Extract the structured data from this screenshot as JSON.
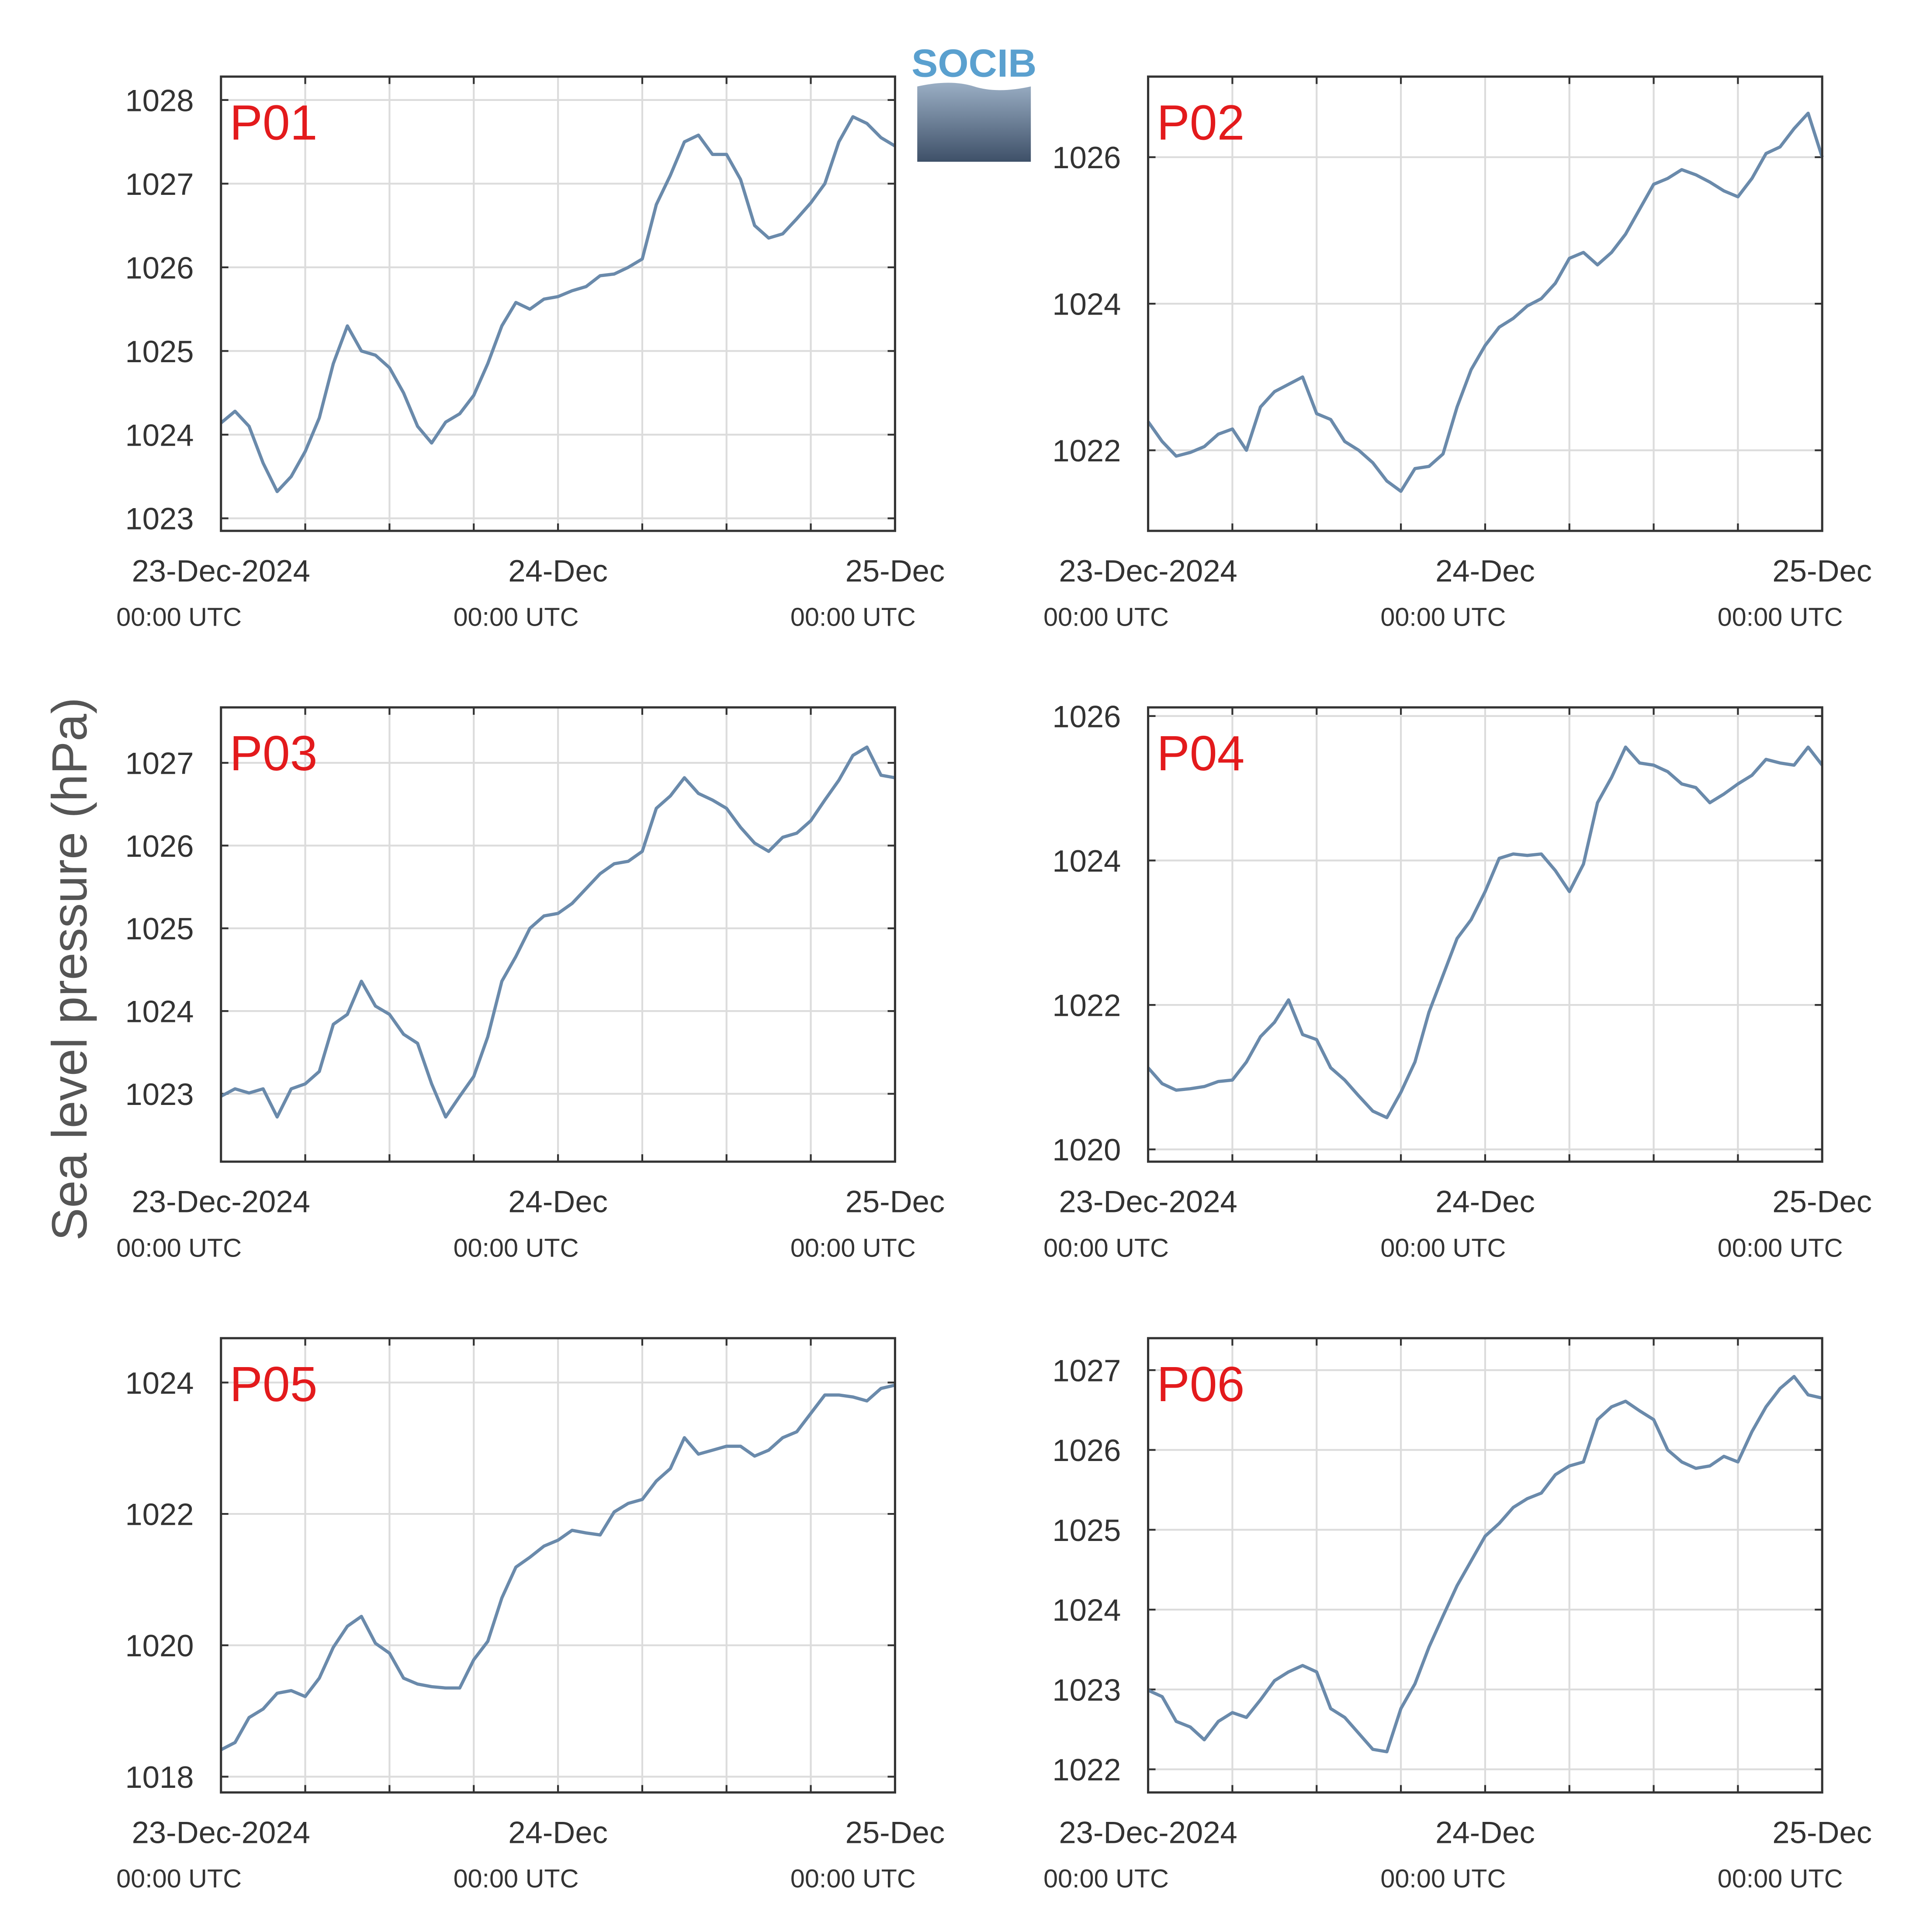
{
  "ylabel": "Sea level pressure (hPa)",
  "logo_text": "SOCIB",
  "chart_data": [
    {
      "type": "line",
      "title": "P01",
      "title_color": "#e31a1c",
      "color": "#6a8aab",
      "grid": true,
      "x": [
        0,
        1,
        2,
        3,
        4,
        5,
        6,
        7,
        8,
        9,
        10,
        11,
        12,
        13,
        14,
        15,
        16,
        17,
        18,
        19,
        20,
        21,
        22,
        23,
        24,
        25,
        26,
        27,
        28,
        29,
        30,
        31,
        32,
        33,
        34,
        35,
        36,
        37,
        38,
        39,
        40,
        41,
        42,
        43,
        44,
        45,
        46,
        47,
        48
      ],
      "values": [
        1024.14,
        1024.28,
        1024.1,
        1023.66,
        1023.32,
        1023.5,
        1023.8,
        1024.2,
        1024.85,
        1025.3,
        1025.0,
        1024.95,
        1024.8,
        1024.5,
        1024.1,
        1023.9,
        1024.15,
        1024.25,
        1024.47,
        1024.85,
        1025.3,
        1025.58,
        1025.5,
        1025.62,
        1025.65,
        1025.72,
        1025.77,
        1025.9,
        1025.92,
        1026.0,
        1026.1,
        1026.75,
        1027.1,
        1027.5,
        1027.58,
        1027.35,
        1027.35,
        1027.05,
        1026.5,
        1026.35,
        1026.4,
        1026.58,
        1026.77,
        1027.0,
        1027.5,
        1027.8,
        1027.72,
        1027.55,
        1027.45
      ],
      "xlim": [
        0,
        48
      ],
      "xticks": [
        {
          "value": 0,
          "label": "23-Dec-2024"
        },
        {
          "value": 24,
          "label": "24-Dec"
        },
        {
          "value": 48,
          "label": "25-Dec"
        }
      ],
      "xtick_sublabels": [
        "00:00 UTC",
        "00:00 UTC",
        "00:00 UTC"
      ],
      "xminorticks": [
        6,
        12,
        18,
        30,
        36,
        42
      ],
      "ylim": [
        1022.85,
        1028.28
      ],
      "yticks": [
        1023,
        1024,
        1025,
        1026,
        1027,
        1028
      ]
    },
    {
      "type": "line",
      "title": "P02",
      "title_color": "#e31a1c",
      "color": "#6a8aab",
      "grid": true,
      "x": [
        0,
        1,
        2,
        3,
        4,
        5,
        6,
        7,
        8,
        9,
        10,
        11,
        12,
        13,
        14,
        15,
        16,
        17,
        18,
        19,
        20,
        21,
        22,
        23,
        24,
        25,
        26,
        27,
        28,
        29,
        30,
        31,
        32,
        33,
        34,
        35,
        36,
        37,
        38,
        39,
        40,
        41,
        42,
        43,
        44,
        45,
        46,
        47,
        48
      ],
      "values": [
        1022.39,
        1022.12,
        1021.92,
        1021.97,
        1022.05,
        1022.22,
        1022.29,
        1022.0,
        1022.59,
        1022.8,
        1022.9,
        1023.0,
        1022.5,
        1022.42,
        1022.12,
        1022.0,
        1021.83,
        1021.58,
        1021.44,
        1021.75,
        1021.78,
        1021.95,
        1022.59,
        1023.1,
        1023.43,
        1023.68,
        1023.8,
        1023.97,
        1024.07,
        1024.28,
        1024.62,
        1024.7,
        1024.53,
        1024.7,
        1024.95,
        1025.29,
        1025.63,
        1025.71,
        1025.83,
        1025.76,
        1025.66,
        1025.54,
        1025.46,
        1025.71,
        1026.05,
        1026.14,
        1026.39,
        1026.6,
        1026.0
      ],
      "xlim": [
        0,
        48
      ],
      "xticks": [
        {
          "value": 0,
          "label": "23-Dec-2024"
        },
        {
          "value": 24,
          "label": "24-Dec"
        },
        {
          "value": 48,
          "label": "25-Dec"
        }
      ],
      "xtick_sublabels": [
        "00:00 UTC",
        "00:00 UTC",
        "00:00 UTC"
      ],
      "xminorticks": [
        6,
        12,
        18,
        30,
        36,
        42
      ],
      "ylim": [
        1020.9,
        1027.1
      ],
      "yticks": [
        1022,
        1024,
        1026
      ]
    },
    {
      "type": "line",
      "title": "P03",
      "title_color": "#e31a1c",
      "color": "#6a8aab",
      "grid": true,
      "x": [
        0,
        1,
        2,
        3,
        4,
        5,
        6,
        7,
        8,
        9,
        10,
        11,
        12,
        13,
        14,
        15,
        16,
        17,
        18,
        19,
        20,
        21,
        22,
        23,
        24,
        25,
        26,
        27,
        28,
        29,
        30,
        31,
        32,
        33,
        34,
        35,
        36,
        37,
        38,
        39,
        40,
        41,
        42,
        43,
        44,
        45,
        46,
        47,
        48
      ],
      "values": [
        1022.97,
        1023.06,
        1023.01,
        1023.06,
        1022.72,
        1023.06,
        1023.12,
        1023.27,
        1023.84,
        1023.96,
        1024.36,
        1024.06,
        1023.96,
        1023.72,
        1023.61,
        1023.12,
        1022.72,
        1022.97,
        1023.21,
        1023.69,
        1024.36,
        1024.66,
        1025.0,
        1025.15,
        1025.18,
        1025.3,
        1025.48,
        1025.66,
        1025.78,
        1025.81,
        1025.93,
        1026.45,
        1026.6,
        1026.82,
        1026.63,
        1026.55,
        1026.45,
        1026.22,
        1026.03,
        1025.93,
        1026.1,
        1026.15,
        1026.3,
        1026.55,
        1026.79,
        1027.09,
        1027.19,
        1026.85,
        1026.82
      ],
      "xlim": [
        0,
        48
      ],
      "xticks": [
        {
          "value": 0,
          "label": "23-Dec-2024"
        },
        {
          "value": 24,
          "label": "24-Dec"
        },
        {
          "value": 48,
          "label": "25-Dec"
        }
      ],
      "xtick_sublabels": [
        "00:00 UTC",
        "00:00 UTC",
        "00:00 UTC"
      ],
      "xminorticks": [
        6,
        12,
        18,
        30,
        36,
        42
      ],
      "ylim": [
        1022.18,
        1027.67
      ],
      "yticks": [
        1023,
        1024,
        1025,
        1026,
        1027
      ]
    },
    {
      "type": "line",
      "title": "P04",
      "title_color": "#e31a1c",
      "color": "#6a8aab",
      "grid": true,
      "x": [
        0,
        1,
        2,
        3,
        4,
        5,
        6,
        7,
        8,
        9,
        10,
        11,
        12,
        13,
        14,
        15,
        16,
        17,
        18,
        19,
        20,
        21,
        22,
        23,
        24,
        25,
        26,
        27,
        28,
        29,
        30,
        31,
        32,
        33,
        34,
        35,
        36,
        37,
        38,
        39,
        40,
        41,
        42,
        43,
        44,
        45,
        46,
        47,
        48
      ],
      "values": [
        1021.13,
        1020.91,
        1020.82,
        1020.84,
        1020.87,
        1020.94,
        1020.96,
        1021.21,
        1021.56,
        1021.76,
        1022.07,
        1021.59,
        1021.52,
        1021.13,
        1020.96,
        1020.74,
        1020.53,
        1020.44,
        1020.79,
        1021.21,
        1021.9,
        1022.41,
        1022.92,
        1023.18,
        1023.57,
        1024.03,
        1024.09,
        1024.07,
        1024.09,
        1023.86,
        1023.57,
        1023.95,
        1024.8,
        1025.15,
        1025.57,
        1025.35,
        1025.32,
        1025.23,
        1025.06,
        1025.01,
        1024.8,
        1024.92,
        1025.06,
        1025.18,
        1025.4,
        1025.35,
        1025.32,
        1025.57,
        1025.32
      ],
      "xlim": [
        0,
        48
      ],
      "xticks": [
        {
          "value": 0,
          "label": "23-Dec-2024"
        },
        {
          "value": 24,
          "label": "24-Dec"
        },
        {
          "value": 48,
          "label": "25-Dec"
        }
      ],
      "xtick_sublabels": [
        "00:00 UTC",
        "00:00 UTC",
        "00:00 UTC"
      ],
      "xminorticks": [
        6,
        12,
        18,
        30,
        36,
        42
      ],
      "ylim": [
        1019.83,
        1026.12
      ],
      "yticks": [
        1020,
        1022,
        1024,
        1026
      ]
    },
    {
      "type": "line",
      "title": "P05",
      "title_color": "#e31a1c",
      "color": "#6a8aab",
      "grid": true,
      "x": [
        0,
        1,
        2,
        3,
        4,
        5,
        6,
        7,
        8,
        9,
        10,
        11,
        12,
        13,
        14,
        15,
        16,
        17,
        18,
        19,
        20,
        21,
        22,
        23,
        24,
        25,
        26,
        27,
        28,
        29,
        30,
        31,
        32,
        33,
        34,
        35,
        36,
        37,
        38,
        39,
        40,
        41,
        42,
        43,
        44,
        45,
        46,
        47,
        48
      ],
      "values": [
        1018.41,
        1018.52,
        1018.9,
        1019.03,
        1019.27,
        1019.31,
        1019.22,
        1019.5,
        1019.97,
        1020.29,
        1020.44,
        1020.03,
        1019.88,
        1019.5,
        1019.41,
        1019.37,
        1019.35,
        1019.35,
        1019.78,
        1020.06,
        1020.72,
        1021.19,
        1021.34,
        1021.51,
        1021.6,
        1021.75,
        1021.71,
        1021.68,
        1022.03,
        1022.16,
        1022.22,
        1022.5,
        1022.69,
        1023.16,
        1022.91,
        1022.97,
        1023.03,
        1023.03,
        1022.88,
        1022.97,
        1023.16,
        1023.25,
        1023.53,
        1023.81,
        1023.81,
        1023.78,
        1023.72,
        1023.91,
        1023.96
      ],
      "xlim": [
        0,
        48
      ],
      "xticks": [
        {
          "value": 0,
          "label": "23-Dec-2024"
        },
        {
          "value": 24,
          "label": "24-Dec"
        },
        {
          "value": 48,
          "label": "25-Dec"
        }
      ],
      "xtick_sublabels": [
        "00:00 UTC",
        "00:00 UTC",
        "00:00 UTC"
      ],
      "xminorticks": [
        6,
        12,
        18,
        30,
        36,
        42
      ],
      "ylim": [
        1017.76,
        1024.675
      ],
      "yticks": [
        1018,
        1020,
        1022,
        1024
      ]
    },
    {
      "type": "line",
      "title": "P06",
      "title_color": "#e31a1c",
      "color": "#6a8aab",
      "grid": true,
      "x": [
        0,
        1,
        2,
        3,
        4,
        5,
        6,
        7,
        8,
        9,
        10,
        11,
        12,
        13,
        14,
        15,
        16,
        17,
        18,
        19,
        20,
        21,
        22,
        23,
        24,
        25,
        26,
        27,
        28,
        29,
        30,
        31,
        32,
        33,
        34,
        35,
        36,
        37,
        38,
        39,
        40,
        41,
        42,
        43,
        44,
        45,
        46,
        47,
        48
      ],
      "values": [
        1022.99,
        1022.91,
        1022.6,
        1022.53,
        1022.37,
        1022.6,
        1022.71,
        1022.65,
        1022.87,
        1023.11,
        1023.22,
        1023.3,
        1023.22,
        1022.76,
        1022.65,
        1022.45,
        1022.25,
        1022.22,
        1022.76,
        1023.07,
        1023.53,
        1023.92,
        1024.3,
        1024.61,
        1024.92,
        1025.08,
        1025.28,
        1025.39,
        1025.46,
        1025.69,
        1025.8,
        1025.85,
        1026.38,
        1026.54,
        1026.61,
        1026.49,
        1026.38,
        1026.0,
        1025.85,
        1025.77,
        1025.8,
        1025.92,
        1025.85,
        1026.23,
        1026.54,
        1026.77,
        1026.92,
        1026.69,
        1026.65
      ],
      "xlim": [
        0,
        48
      ],
      "xticks": [
        {
          "value": 0,
          "label": "23-Dec-2024"
        },
        {
          "value": 24,
          "label": "24-Dec"
        },
        {
          "value": 48,
          "label": "25-Dec"
        }
      ],
      "xtick_sublabels": [
        "00:00 UTC",
        "00:00 UTC",
        "00:00 UTC"
      ],
      "xminorticks": [
        6,
        12,
        18,
        30,
        36,
        42
      ],
      "ylim": [
        1021.71,
        1027.4
      ],
      "yticks": [
        1022,
        1023,
        1024,
        1025,
        1026,
        1027
      ]
    }
  ]
}
